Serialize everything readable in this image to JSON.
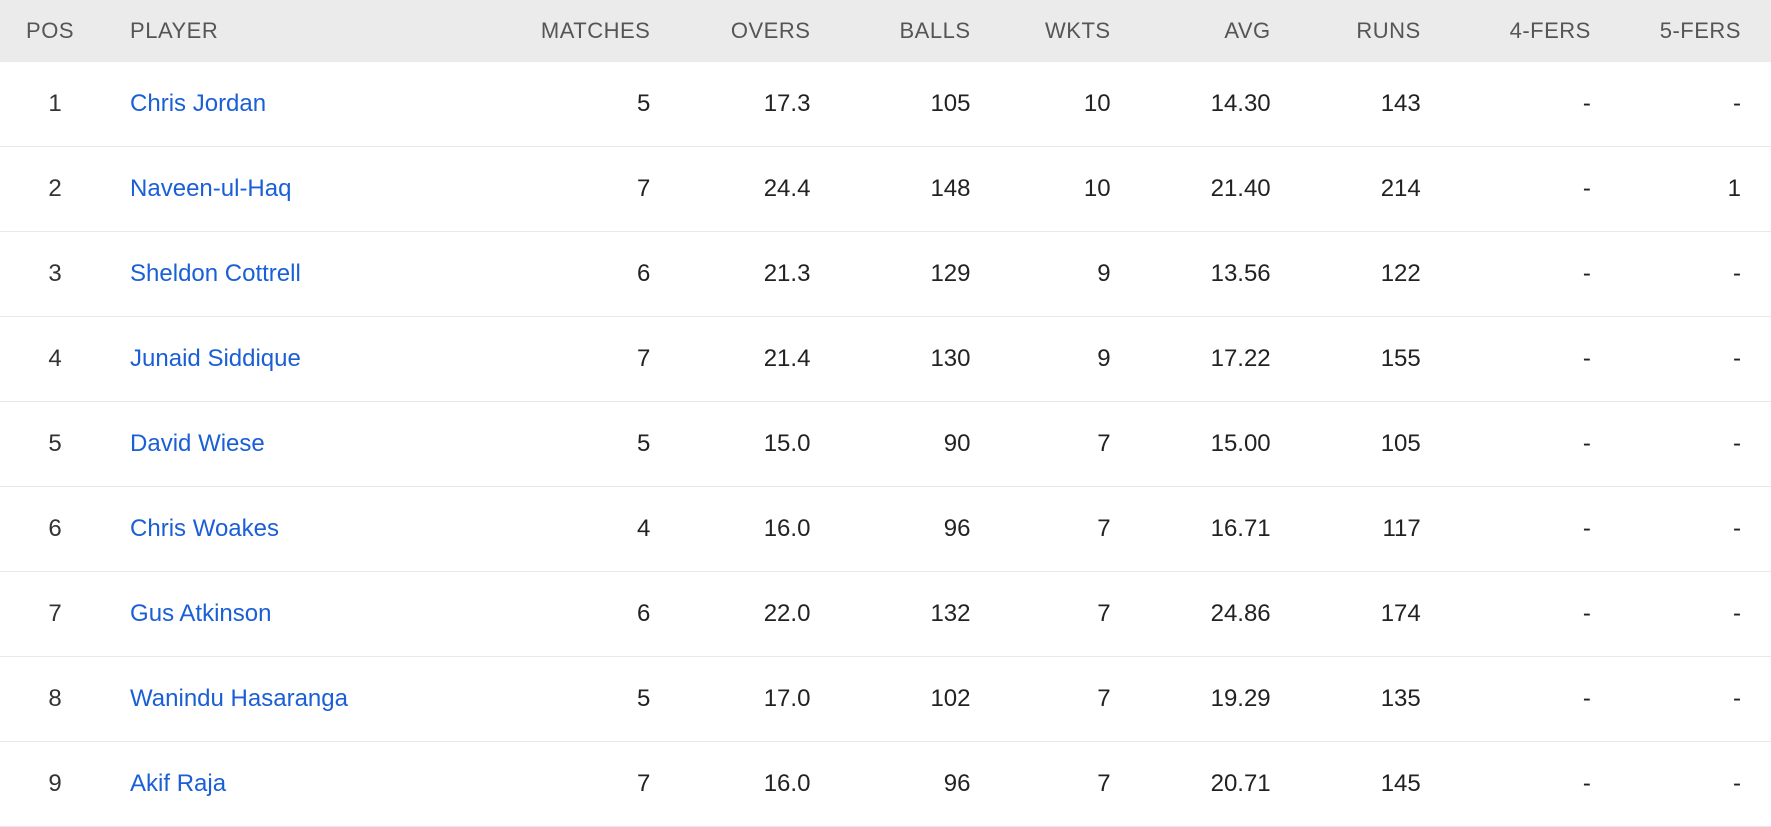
{
  "table": {
    "columns": [
      {
        "key": "pos",
        "label": "POS",
        "class": "col-pos"
      },
      {
        "key": "player",
        "label": "PLAYER",
        "class": "col-player"
      },
      {
        "key": "matches",
        "label": "MATCHES",
        "class": "col-matches"
      },
      {
        "key": "overs",
        "label": "OVERS",
        "class": "col-overs"
      },
      {
        "key": "balls",
        "label": "BALLS",
        "class": "col-balls"
      },
      {
        "key": "wkts",
        "label": "WKTS",
        "class": "col-wkts"
      },
      {
        "key": "avg",
        "label": "AVG",
        "class": "col-avg"
      },
      {
        "key": "runs",
        "label": "RUNS",
        "class": "col-runs"
      },
      {
        "key": "f4",
        "label": "4-FERS",
        "class": "col-4fers"
      },
      {
        "key": "f5",
        "label": "5-FERS",
        "class": "col-5fers"
      }
    ],
    "rows": [
      {
        "pos": "1",
        "player": "Chris Jordan",
        "matches": "5",
        "overs": "17.3",
        "balls": "105",
        "wkts": "10",
        "avg": "14.30",
        "runs": "143",
        "f4": "-",
        "f5": "-"
      },
      {
        "pos": "2",
        "player": "Naveen-ul-Haq",
        "matches": "7",
        "overs": "24.4",
        "balls": "148",
        "wkts": "10",
        "avg": "21.40",
        "runs": "214",
        "f4": "-",
        "f5": "1"
      },
      {
        "pos": "3",
        "player": "Sheldon Cottrell",
        "matches": "6",
        "overs": "21.3",
        "balls": "129",
        "wkts": "9",
        "avg": "13.56",
        "runs": "122",
        "f4": "-",
        "f5": "-"
      },
      {
        "pos": "4",
        "player": "Junaid Siddique",
        "matches": "7",
        "overs": "21.4",
        "balls": "130",
        "wkts": "9",
        "avg": "17.22",
        "runs": "155",
        "f4": "-",
        "f5": "-"
      },
      {
        "pos": "5",
        "player": "David Wiese",
        "matches": "5",
        "overs": "15.0",
        "balls": "90",
        "wkts": "7",
        "avg": "15.00",
        "runs": "105",
        "f4": "-",
        "f5": "-"
      },
      {
        "pos": "6",
        "player": "Chris Woakes",
        "matches": "4",
        "overs": "16.0",
        "balls": "96",
        "wkts": "7",
        "avg": "16.71",
        "runs": "117",
        "f4": "-",
        "f5": "-"
      },
      {
        "pos": "7",
        "player": "Gus Atkinson",
        "matches": "6",
        "overs": "22.0",
        "balls": "132",
        "wkts": "7",
        "avg": "24.86",
        "runs": "174",
        "f4": "-",
        "f5": "-"
      },
      {
        "pos": "8",
        "player": "Wanindu Hasaranga",
        "matches": "5",
        "overs": "17.0",
        "balls": "102",
        "wkts": "7",
        "avg": "19.29",
        "runs": "135",
        "f4": "-",
        "f5": "-"
      },
      {
        "pos": "9",
        "player": "Akif Raja",
        "matches": "7",
        "overs": "16.0",
        "balls": "96",
        "wkts": "7",
        "avg": "20.71",
        "runs": "145",
        "f4": "-",
        "f5": "-"
      }
    ],
    "styling": {
      "header_bg": "#ebebeb",
      "header_text_color": "#555555",
      "header_fontsize": 22,
      "cell_fontsize": 24,
      "cell_text_color": "#222222",
      "link_color": "#1a5fd6",
      "row_border_color": "#e8e8e8",
      "background_color": "#ffffff",
      "font_family": "Arial"
    }
  }
}
